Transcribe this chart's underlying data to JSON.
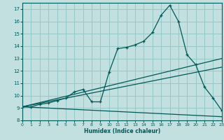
{
  "xlabel": "Humidex (Indice chaleur)",
  "background_color": "#c2e0e0",
  "grid_color": "#96c8c8",
  "line_color": "#005858",
  "xlim": [
    0,
    23
  ],
  "ylim": [
    8,
    17.5
  ],
  "xticks": [
    0,
    1,
    2,
    3,
    4,
    5,
    6,
    7,
    8,
    9,
    10,
    11,
    12,
    13,
    14,
    15,
    16,
    17,
    18,
    19,
    20,
    21,
    22,
    23
  ],
  "yticks": [
    8,
    9,
    10,
    11,
    12,
    13,
    14,
    15,
    16,
    17
  ],
  "curve1_x": [
    0,
    1,
    2,
    3,
    4,
    5,
    6,
    7,
    8,
    9,
    10,
    11,
    12,
    13,
    14,
    15,
    16,
    17,
    18,
    19,
    20,
    21,
    22,
    23
  ],
  "curve1_y": [
    9.1,
    9.1,
    9.3,
    9.4,
    9.6,
    9.8,
    10.3,
    10.5,
    9.5,
    9.5,
    11.9,
    13.8,
    13.9,
    14.1,
    14.4,
    15.1,
    16.5,
    17.3,
    16.0,
    13.3,
    12.5,
    10.7,
    9.8,
    8.8
  ],
  "line2_x": [
    0,
    23
  ],
  "line2_y": [
    9.1,
    13.0
  ],
  "line3_x": [
    0,
    23
  ],
  "line3_y": [
    9.1,
    12.3
  ],
  "line4_x": [
    0,
    23
  ],
  "line4_y": [
    9.1,
    8.3
  ]
}
